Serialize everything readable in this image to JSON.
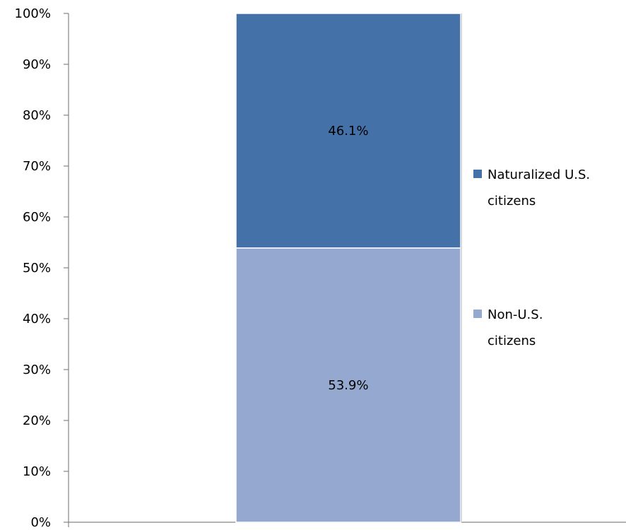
{
  "chart_data": {
    "type": "bar",
    "stacked": true,
    "percent": true,
    "categories": [
      ""
    ],
    "ylim": [
      0,
      100
    ],
    "y_ticks": [
      "0%",
      "10%",
      "20%",
      "30%",
      "40%",
      "50%",
      "60%",
      "70%",
      "80%",
      "90%",
      "100%"
    ],
    "grid": false,
    "legend_position": "right",
    "series": [
      {
        "name": "Non-U.S. citizens",
        "legend_lines": [
          "Non-U.S.",
          "citizens"
        ],
        "values": [
          53.9
        ],
        "label": "53.9%",
        "color": "#95A9D0"
      },
      {
        "name": "Naturalized U.S. citizens",
        "legend_lines": [
          "Naturalized U.S.",
          "citizens"
        ],
        "values": [
          46.1
        ],
        "label": "46.1%",
        "color": "#4472A8"
      }
    ]
  }
}
